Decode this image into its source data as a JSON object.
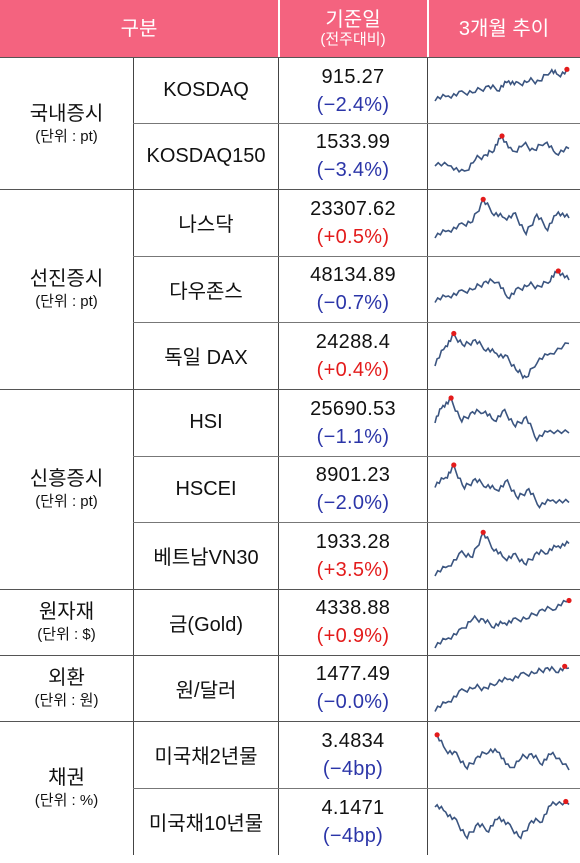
{
  "header": {
    "col_category": "구분",
    "col_base_line1": "기준일",
    "col_base_line2": "(전주대비)",
    "col_trend": "3개월 추이"
  },
  "groups": [
    {
      "name": "국내증시",
      "unit": "(단위 : pt)",
      "rows": [
        {
          "name": "KOSDAQ",
          "value": "915.27",
          "change": "(−2.4%)",
          "direction": "down"
        },
        {
          "name": "KOSDAQ150",
          "value": "1533.99",
          "change": "(−3.4%)",
          "direction": "down"
        }
      ]
    },
    {
      "name": "선진증시",
      "unit": "(단위 : pt)",
      "rows": [
        {
          "name": "나스닥",
          "value": "23307.62",
          "change": "(+0.5%)",
          "direction": "up"
        },
        {
          "name": "다우존스",
          "value": "48134.89",
          "change": "(−0.7%)",
          "direction": "down"
        },
        {
          "name": "독일 DAX",
          "value": "24288.4",
          "change": "(+0.4%)",
          "direction": "up"
        }
      ]
    },
    {
      "name": "신흥증시",
      "unit": "(단위 : pt)",
      "rows": [
        {
          "name": "HSI",
          "value": "25690.53",
          "change": "(−1.1%)",
          "direction": "down"
        },
        {
          "name": "HSCEI",
          "value": "8901.23",
          "change": "(−2.0%)",
          "direction": "down"
        },
        {
          "name": "베트남VN30",
          "value": "1933.28",
          "change": "(+3.5%)",
          "direction": "up"
        }
      ]
    },
    {
      "name": "원자재",
      "unit": "(단위 : $)",
      "rows": [
        {
          "name": "금(Gold)",
          "value": "4338.88",
          "change": "(+0.9%)",
          "direction": "up"
        }
      ]
    },
    {
      "name": "외환",
      "unit": "(단위 : 원)",
      "rows": [
        {
          "name": "원/달러",
          "value": "1477.49",
          "change": "(−0.0%)",
          "direction": "down"
        }
      ]
    },
    {
      "name": "채권",
      "unit": "(단위 : %)",
      "rows": [
        {
          "name": "미국채2년물",
          "value": "3.4834",
          "change": "(−4bp)",
          "direction": "down"
        },
        {
          "name": "미국채10년물",
          "value": "4.1471",
          "change": "(−4bp)",
          "direction": "down"
        }
      ]
    }
  ],
  "colors": {
    "header_bg": "#f4637f",
    "header_text": "#ffffff",
    "negative": "#2b35a8",
    "positive": "#e31b1b",
    "sparkline": "#3b5580",
    "sparkline_peak_marker": "#e31b1b"
  }
}
